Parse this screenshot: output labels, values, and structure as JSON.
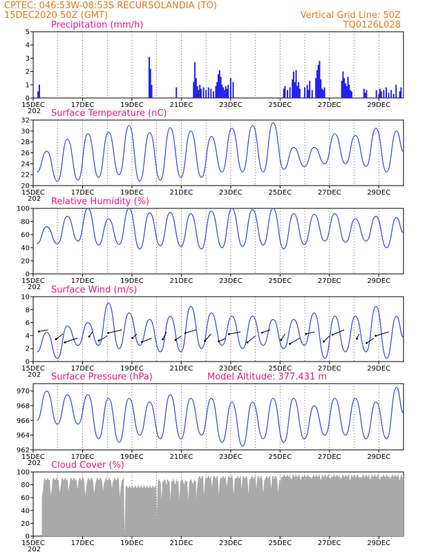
{
  "header": {
    "line1": "CPTEC:   046:53W-08:53S   RECURSOLANDIA (TO)",
    "line2_left": "15DEC2020 50Z (GMT)",
    "line2_right": "Vertical Grid Line: 50Z",
    "line3_right": "TQ0126L028"
  },
  "colors": {
    "header": "#e07a1b",
    "title": "#e5197c",
    "line": "#3344dd",
    "bar": "#2222ee",
    "cloud": "#aaaaaa",
    "grid": "#000000"
  },
  "x_axis": {
    "labels": [
      "15DEC",
      "17DEC",
      "19DEC",
      "21DEC",
      "23DEC",
      "25DEC",
      "27DEC",
      "29DEC"
    ],
    "sub_label": "202"
  },
  "model_altitude": "Model Altitude: 377.431 m",
  "chart_data": [
    {
      "type": "bar",
      "title": "Precipitation (mm/h)",
      "ylim": [
        0,
        5
      ],
      "yticks": [
        "0",
        "1",
        "2",
        "3",
        "4",
        "5"
      ],
      "xlim_days": [
        15,
        30
      ],
      "x": [
        15.2,
        15.25,
        19.7,
        19.75,
        19.8,
        20.8,
        21.5,
        21.55,
        21.6,
        21.65,
        21.7,
        21.75,
        21.8,
        21.9,
        22.0,
        22.1,
        22.2,
        22.3,
        22.4,
        22.45,
        22.5,
        22.55,
        22.6,
        22.65,
        22.7,
        22.75,
        22.8,
        22.85,
        22.9,
        23.0,
        23.1,
        25.15,
        25.2,
        25.3,
        25.4,
        25.5,
        25.55,
        25.6,
        25.65,
        25.7,
        25.75,
        25.8,
        26.0,
        26.1,
        26.15,
        26.2,
        26.3,
        26.45,
        26.5,
        26.55,
        26.6,
        26.65,
        26.7,
        26.75,
        26.8,
        27.5,
        27.55,
        27.6,
        27.65,
        27.7,
        27.75,
        27.8,
        27.85,
        27.9,
        28.4,
        28.45,
        28.5,
        28.9,
        29.0,
        29.05,
        29.1,
        29.2,
        29.3,
        29.4,
        29.5,
        29.6,
        29.7,
        29.85,
        29.9
      ],
      "values": [
        0.5,
        1.0,
        3.1,
        2.2,
        1.0,
        0.8,
        1.2,
        2.7,
        1.5,
        0.9,
        0.6,
        1.0,
        0.7,
        0.8,
        0.6,
        0.8,
        0.7,
        0.5,
        0.9,
        1.2,
        1.8,
        2.1,
        1.6,
        1.0,
        0.8,
        0.6,
        0.9,
        0.7,
        1.0,
        1.5,
        1.2,
        0.7,
        0.9,
        0.6,
        0.8,
        1.4,
        2.0,
        1.2,
        2.1,
        0.9,
        1.2,
        0.7,
        0.8,
        1.0,
        0.6,
        1.3,
        0.6,
        1.5,
        2.1,
        2.5,
        2.8,
        1.4,
        0.7,
        0.6,
        0.8,
        1.3,
        2.0,
        1.5,
        1.1,
        0.9,
        1.6,
        1.0,
        0.6,
        0.5,
        0.7,
        0.4,
        0.6,
        0.6,
        0.3,
        0.7,
        0.5,
        0.6,
        0.8,
        0.4,
        0.6,
        0.3,
        1.0,
        0.5,
        0.8
      ]
    },
    {
      "type": "line",
      "title": "Surface Temperature (nC)",
      "ylim": [
        20,
        32
      ],
      "yticks": [
        "20",
        "22",
        "24",
        "26",
        "28",
        "30",
        "32"
      ],
      "xlim_days": [
        15,
        30
      ],
      "peaks": [
        26.3,
        28.5,
        29.5,
        29.8,
        31.0,
        29.7,
        30.6,
        30.0,
        29.0,
        30.5,
        31.0,
        31.5,
        27.0,
        27.0,
        29.5,
        29.2,
        30.5,
        30.0
      ],
      "troughs": [
        22.5,
        20.8,
        21.0,
        21.5,
        22.0,
        20.8,
        21.0,
        21.5,
        21.5,
        22.5,
        22.5,
        22.5,
        23.0,
        23.5,
        24.0,
        24.0,
        23.5,
        22.5
      ]
    },
    {
      "type": "line",
      "title": "Relative Humidity (%)",
      "ylim": [
        0,
        100
      ],
      "yticks": [
        "0",
        "20",
        "40",
        "60",
        "80",
        "100"
      ],
      "xlim_days": [
        15,
        30
      ],
      "peaks": [
        72,
        88,
        100,
        84,
        100,
        93,
        94,
        92,
        96,
        100,
        98,
        100,
        92,
        91,
        92,
        84,
        88,
        86
      ],
      "troughs": [
        46,
        46,
        50,
        44,
        45,
        38,
        43,
        42,
        38,
        40,
        42,
        44,
        38,
        45,
        50,
        48,
        50,
        40
      ]
    },
    {
      "type": "line",
      "title": "Surface Wind (m/s)",
      "ylim": [
        0,
        10
      ],
      "yticks": [
        "0",
        "2",
        "4",
        "6",
        "8",
        "10"
      ],
      "xlim_days": [
        15,
        30
      ],
      "peaks": [
        4.5,
        5.5,
        6.0,
        9.0,
        7.5,
        6.5,
        7.0,
        8.5,
        7.5,
        7.0,
        7.0,
        6.5,
        6.5,
        7.5,
        7.0,
        7.0,
        8.5,
        7.0
      ],
      "troughs": [
        1.5,
        0.5,
        2.5,
        2.5,
        2.0,
        2.5,
        1.5,
        1.5,
        2.0,
        2.5,
        2.0,
        2.5,
        2.0,
        2.5,
        0.5,
        1.5,
        1.5,
        0.5
      ]
    },
    {
      "type": "line",
      "title": "Surface Pressure (hPa)",
      "ylim": [
        962,
        971
      ],
      "yticks": [
        "962",
        "964",
        "966",
        "968",
        "970"
      ],
      "xlim_days": [
        15,
        30
      ],
      "peaks": [
        970.0,
        969.5,
        969.5,
        969.0,
        969.0,
        968.5,
        969.5,
        969.0,
        969.0,
        968.5,
        968.5,
        969.0,
        969.0,
        968.0,
        969.0,
        969.0,
        968.5,
        970.5
      ],
      "troughs": [
        966.0,
        965.5,
        965.5,
        963.5,
        963.0,
        964.0,
        963.5,
        963.5,
        964.0,
        963.0,
        962.5,
        963.5,
        963.0,
        963.5,
        964.0,
        964.0,
        963.5,
        963.5
      ]
    },
    {
      "type": "area",
      "title": "Cloud Cover (%)",
      "ylim": [
        0,
        100
      ],
      "yticks": [
        "0",
        "20",
        "40",
        "60",
        "80",
        "100"
      ],
      "xlim_days": [
        15,
        30
      ],
      "segments": [
        {
          "x": [
            15.35,
            18.7
          ],
          "base": 92,
          "dip_every": 0.35,
          "dip_min": 60
        },
        {
          "x": [
            18.7,
            20.0
          ],
          "base": 80,
          "dip_every": 0.12,
          "dip_min": 5
        },
        {
          "x": [
            20.0,
            21.6
          ],
          "base": 90,
          "dip_every": 0.18,
          "dip_min": 30
        },
        {
          "x": [
            21.6,
            25.0
          ],
          "base": 95,
          "dip_every": 0.3,
          "dip_min": 60
        },
        {
          "x": [
            25.0,
            30.0
          ],
          "base": 97,
          "dip_every": 0.4,
          "dip_min": 88
        }
      ]
    }
  ]
}
